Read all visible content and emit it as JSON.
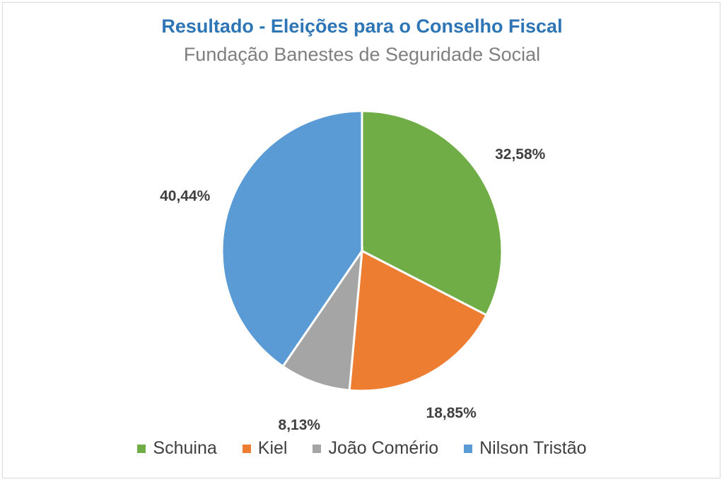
{
  "chart_data": {
    "type": "pie",
    "title": "Resultado - Eleições para o Conselho Fiscal",
    "subtitle": "Fundação Banestes de Seguridade Social",
    "slices": [
      {
        "name": "Schuina",
        "value": 32.58,
        "label": "32,58%",
        "color": "#70ad47"
      },
      {
        "name": "Kiel",
        "value": 18.85,
        "label": "18,85%",
        "color": "#ed7d31"
      },
      {
        "name": "João Comério",
        "value": 8.13,
        "label": "8,13%",
        "color": "#a5a5a5"
      },
      {
        "name": "Nilson Tristão",
        "value": 40.44,
        "label": "40,44%",
        "color": "#5b9bd5"
      }
    ],
    "legend_position": "bottom",
    "start_angle": "12 o'clock, clockwise"
  }
}
